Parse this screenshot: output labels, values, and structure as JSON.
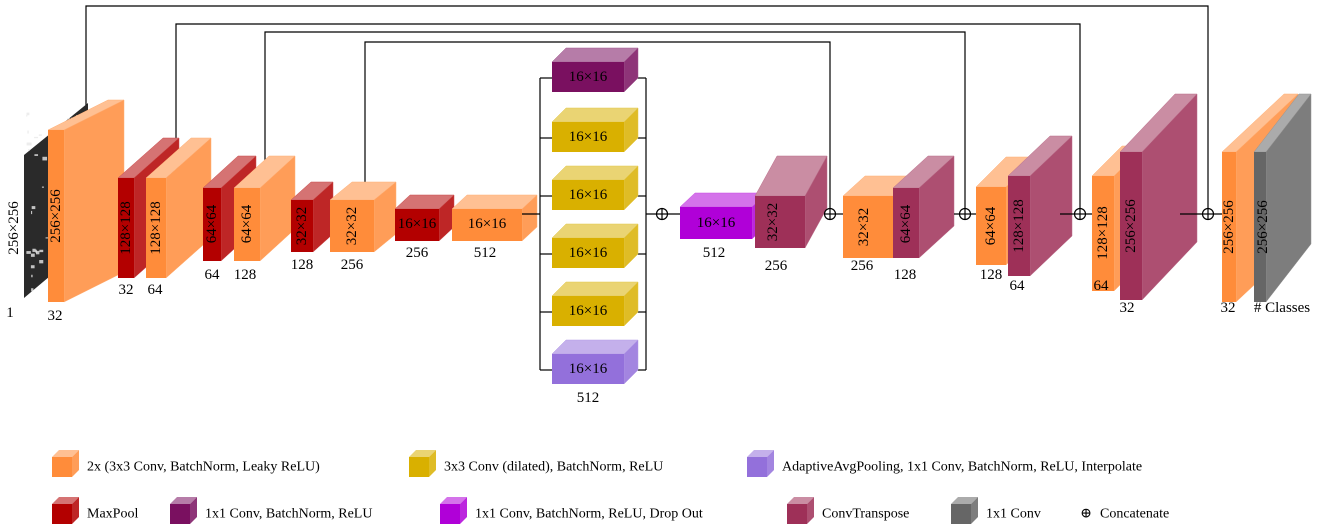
{
  "input": {
    "dim": "256×256",
    "channels": "1"
  },
  "encoder": [
    {
      "dim": "256×256",
      "channels": "32"
    },
    {
      "pool_dim": "128×128",
      "pool_ch": "32",
      "dim": "128×128",
      "channels": "64"
    },
    {
      "pool_dim": "64×64",
      "pool_ch": "64",
      "dim": "64×64",
      "channels": "128"
    },
    {
      "pool_dim": "32×32",
      "pool_ch": "128",
      "dim": "32×32",
      "channels": "256"
    },
    {
      "pool_dim": "16×16",
      "pool_ch": "256",
      "dim": "16×16",
      "channels": "512"
    }
  ],
  "aspp": {
    "branches": [
      "16×16",
      "16×16",
      "16×16",
      "16×16",
      "16×16",
      "16×16"
    ],
    "channels": "512"
  },
  "bottleneck": {
    "dim": "16×16",
    "channels": "512"
  },
  "decoder": [
    {
      "up_dim": "32×32",
      "up_ch": "256",
      "conv_dim": "32×32",
      "conv_ch": "256"
    },
    {
      "up_dim": "64×64",
      "up_ch": "128",
      "conv_dim": "64×64",
      "conv_ch": "128"
    },
    {
      "up_dim": "128×128",
      "up_ch": "64",
      "conv_dim": "128×128",
      "conv_ch": "64"
    },
    {
      "up_dim": "256×256",
      "up_ch": "32",
      "conv_dim": "256×256",
      "conv_ch": "32"
    }
  ],
  "output": {
    "dim": "256×256",
    "channels": "# Classes"
  },
  "concat_symbol": "⊕",
  "legend": [
    {
      "label": "2x (3x3 Conv, BatchNorm, Leaky ReLU)",
      "color": "#ff8c3a"
    },
    {
      "label": "3x3 Conv (dilated), BatchNorm, ReLU",
      "color": "#d9b000"
    },
    {
      "label": "AdaptiveAvgPooling, 1x1 Conv, BatchNorm, ReLU, Interpolate",
      "color": "#9370db"
    },
    {
      "label": "MaxPool",
      "color": "#b30000"
    },
    {
      "label": "1x1 Conv, BatchNorm, ReLU",
      "color": "#7a1060"
    },
    {
      "label": "1x1 Conv, BatchNorm, ReLU, Drop Out",
      "color": "#b000d8"
    },
    {
      "label": "ConvTranspose",
      "color": "#9e3058"
    },
    {
      "label": "1x1 Conv",
      "color": "#666666"
    },
    {
      "label": "Concatenate",
      "color": "#000000"
    }
  ],
  "colors": {
    "conv": "#ff8c3a",
    "pool": "#b30000",
    "dilated": "#d9b000",
    "avgpool": "#9370db",
    "bottleneck": "#b000d8",
    "aspp_1x1": "#7a1060",
    "transpose": "#9e3058",
    "final": "#666666"
  }
}
